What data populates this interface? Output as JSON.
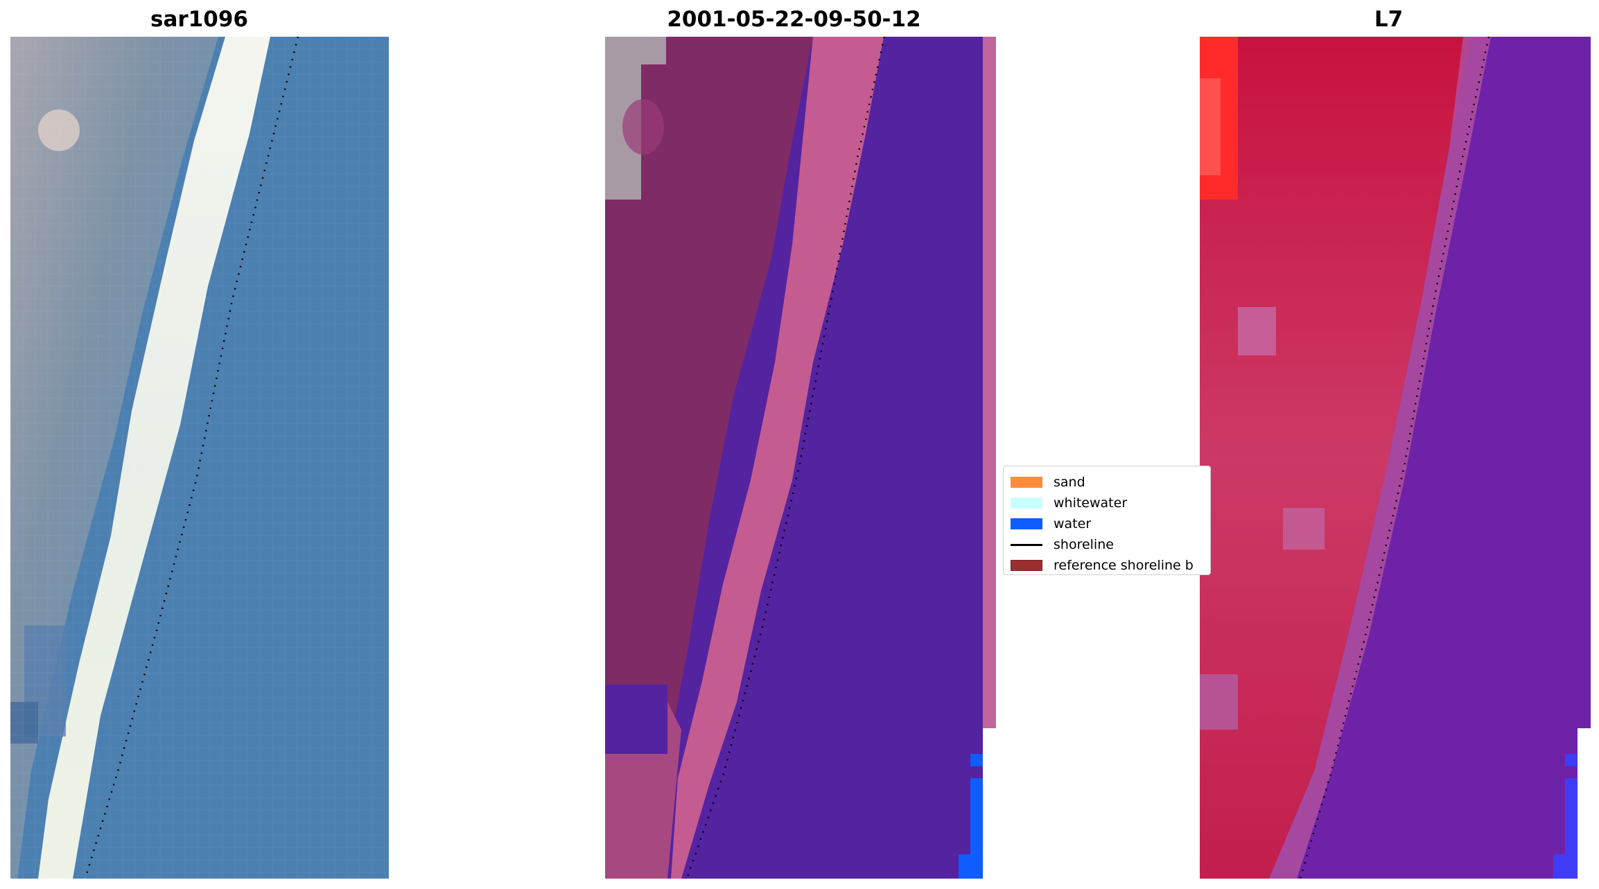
{
  "titles": {
    "left": "sar1096",
    "middle": "2001-05-22-09-50-12",
    "right": "L7"
  },
  "legend": {
    "items": [
      {
        "label": "sand",
        "color": "#ff8c3a",
        "kind": "patch"
      },
      {
        "label": "whitewater",
        "color": "#c8ffff",
        "kind": "patch"
      },
      {
        "label": "water",
        "color": "#0f5cff",
        "kind": "patch"
      },
      {
        "label": "shoreline",
        "color": "#000000",
        "kind": "line"
      },
      {
        "label": "reference shoreline b",
        "color": "#9a2f2f",
        "kind": "patch"
      }
    ]
  },
  "colors": {
    "rgb_land": "#8d98a8",
    "rgb_beach": "#f2f3ea",
    "rgb_water": "#4a7fb0",
    "class_land": "#7e2b66",
    "class_beach": "#c45c92",
    "class_water": "#5423a0",
    "class_bluewater": "#0f5cff",
    "ndwi_land": "#c61f4c",
    "ndwi_water": "#6e22a8"
  }
}
